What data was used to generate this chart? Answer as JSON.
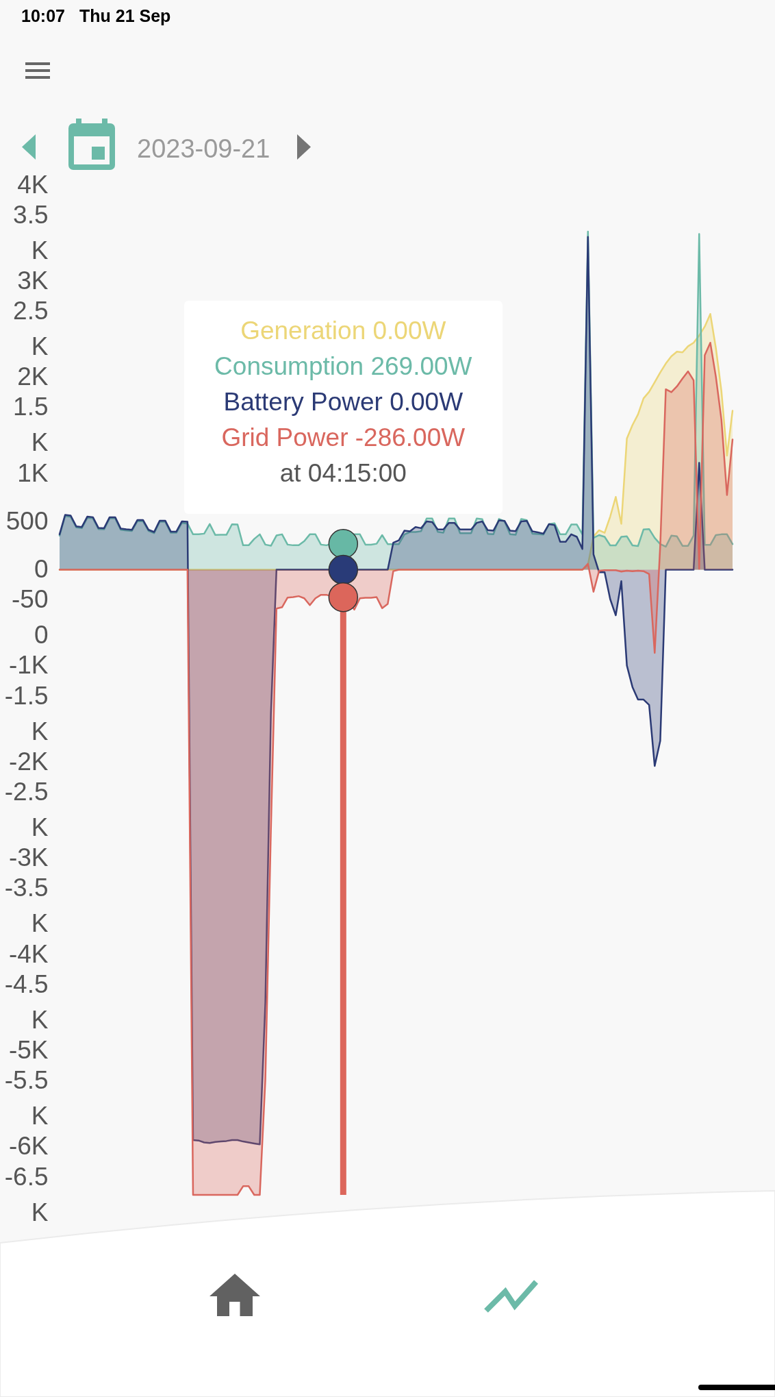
{
  "chart_data": {
    "type": "area",
    "title": "2023-09-21",
    "tick_labels": "y",
    "categories": [
      null,
      null,
      null,
      null,
      null,
      null,
      null,
      null,
      null,
      null,
      null,
      null,
      null,
      null,
      null,
      null,
      null,
      null,
      null,
      null,
      null,
      null,
      null,
      null,
      null,
      null,
      null,
      null,
      null,
      null,
      null,
      null,
      null,
      null,
      null,
      null,
      null,
      null,
      null,
      null,
      null,
      null,
      null,
      null,
      null,
      null,
      null,
      null,
      null,
      null,
      null,
      null,
      null,
      null,
      null,
      null,
      null,
      null,
      null,
      null,
      null,
      null,
      null,
      null,
      null,
      null,
      null,
      null,
      null,
      null,
      null,
      null,
      null,
      null,
      null,
      null,
      null,
      null,
      null,
      null,
      null,
      null,
      null,
      null,
      null,
      null,
      null,
      null,
      null,
      null,
      null,
      null,
      null,
      null,
      null,
      null,
      null,
      null,
      null,
      null,
      null,
      null,
      null,
      null,
      null,
      null,
      null,
      null,
      null,
      null,
      null,
      null,
      null,
      null,
      null,
      null,
      null,
      null,
      null,
      null,
      null,
      null
    ],
    "ylim": [
      -6500,
      4000
    ],
    "yticks": [
      {
        "value": 4000,
        "label": "4K"
      },
      {
        "value": 3500,
        "label": "3.5K"
      },
      {
        "value": 3000,
        "label": "3K"
      },
      {
        "value": 2500,
        "label": "2.5K"
      },
      {
        "value": 2000,
        "label": "2K"
      },
      {
        "value": 1500,
        "label": "1.5K"
      },
      {
        "value": 1000,
        "label": "1K"
      },
      500,
      0,
      -500,
      {
        "value": -1000,
        "label": "-1K"
      },
      {
        "value": -1500,
        "label": "-1.5K"
      },
      {
        "value": -2000,
        "label": "-2K"
      },
      {
        "value": -2500,
        "label": "-2.5K"
      },
      {
        "value": -3000,
        "label": "-3K"
      },
      {
        "value": -3500,
        "label": "-3.5K"
      },
      {
        "value": -4000,
        "label": "-4K"
      },
      {
        "value": -4500,
        "label": "-4.5K"
      },
      {
        "value": -5000,
        "label": "-5K"
      },
      {
        "value": -5500,
        "label": "-5.5K"
      },
      {
        "value": -6000,
        "label": "-6K"
      },
      {
        "value": -6500,
        "label": "-6.5K"
      }
    ],
    "series": [
      {
        "color": "#ecd677",
        "values": [
          0,
          0,
          0,
          0,
          0,
          0,
          0,
          0,
          0,
          0,
          0,
          0,
          0,
          0,
          0,
          0,
          0,
          0,
          0,
          0,
          0,
          0,
          0,
          0,
          0,
          0,
          0,
          0,
          0,
          0,
          0,
          0,
          0,
          0,
          0,
          0,
          0,
          0,
          0,
          0,
          0,
          0,
          0,
          0,
          0,
          0,
          0,
          0,
          0,
          0,
          0,
          0,
          0,
          0,
          0,
          0,
          0,
          0,
          0,
          0,
          0,
          0,
          0,
          0,
          0,
          0,
          0,
          0,
          0,
          0,
          0,
          0,
          0,
          0,
          0,
          0,
          0,
          0,
          0,
          0,
          0,
          0,
          0,
          0,
          0,
          0,
          0,
          0,
          0,
          0,
          0,
          0,
          0,
          0,
          0,
          50,
          347,
          410,
          384,
          552,
          757,
          477,
          1365,
          1503,
          1615,
          1782,
          1850,
          1950,
          2051,
          2144,
          2219,
          2267,
          2260,
          2323,
          2360,
          2435,
          2528,
          2659,
          2305,
          1857,
          1186,
          1652
        ]
      },
      {
        "color": "#6cbaa8",
        "values": [
          355,
          558,
          550,
          440,
          432,
          540,
          534,
          422,
          420,
          534,
          534,
          415,
          408,
          403,
          505,
          505,
          403,
          380,
          498,
          498,
          384,
          384,
          487,
          480,
          368,
          368,
          375,
          475,
          361,
          363,
          363,
          472,
          470,
          254,
          254,
          320,
          368,
          261,
          249,
          356,
          368,
          261,
          254,
          254,
          297,
          368,
          368,
          261,
          254,
          273,
          266,
          269,
          330,
          368,
          368,
          260,
          260,
          270,
          360,
          266,
          266,
          266,
          366,
          392,
          392,
          400,
          533,
          533,
          393,
          385,
          533,
          533,
          380,
          380,
          380,
          533,
          525,
          373,
          368,
          528,
          503,
          368,
          363,
          528,
          515,
          375,
          370,
          365,
          474,
          482,
          368,
          368,
          470,
          470,
          368,
          3516,
          330,
          360,
          342,
          253,
          253,
          342,
          347,
          253,
          246,
          419,
          423,
          330,
          266,
          240,
          355,
          347,
          248,
          248,
          355,
          3490,
          258,
          258,
          360,
          368,
          368,
          266
        ]
      },
      {
        "color": "#2b3a75",
        "values": [
          368,
          570,
          563,
          451,
          444,
          553,
          546,
          434,
          432,
          546,
          546,
          427,
          420,
          415,
          517,
          517,
          415,
          392,
          510,
          510,
          396,
          396,
          503,
          498,
          -5930,
          -5935,
          -5955,
          -5960,
          -5950,
          -5945,
          -5940,
          -5930,
          -5930,
          -5945,
          -5955,
          -5965,
          -5975,
          -4500,
          -1500,
          0,
          0,
          0,
          0,
          0,
          0,
          0,
          0,
          0,
          0,
          0,
          0,
          0,
          0,
          0,
          0,
          0,
          0,
          0,
          0,
          0,
          280,
          305,
          406,
          399,
          444,
          432,
          502,
          495,
          419,
          419,
          487,
          487,
          419,
          419,
          419,
          487,
          502,
          411,
          406,
          513,
          508,
          406,
          401,
          502,
          508,
          399,
          388,
          375,
          474,
          464,
          291,
          291,
          368,
          342,
          215,
          3461,
          160,
          -26,
          -26,
          -306,
          -474,
          -119,
          -996,
          -1219,
          -1350,
          -1350,
          -1406,
          -2040,
          -1779,
          0,
          0,
          0,
          0,
          0,
          0,
          1111,
          0,
          0,
          0,
          0,
          0,
          0
        ]
      },
      {
        "color": "#d9675e",
        "values": [
          0,
          0,
          0,
          0,
          0,
          0,
          0,
          0,
          0,
          0,
          0,
          0,
          0,
          0,
          0,
          0,
          0,
          0,
          0,
          0,
          0,
          0,
          0,
          0,
          -6500,
          -6500,
          -6500,
          -6500,
          -6500,
          -6500,
          -6500,
          -6500,
          -6500,
          -6410,
          -6410,
          -6500,
          -6500,
          -5300,
          -2700,
          -404,
          -390,
          -290,
          -285,
          -275,
          -297,
          -368,
          -297,
          -261,
          -261,
          -280,
          -290,
          -286,
          -330,
          -415,
          -297,
          -292,
          -292,
          -285,
          -400,
          -356,
          -15,
          0,
          0,
          0,
          0,
          0,
          0,
          0,
          0,
          0,
          0,
          0,
          0,
          0,
          0,
          0,
          0,
          0,
          0,
          0,
          0,
          0,
          0,
          0,
          0,
          0,
          0,
          0,
          0,
          0,
          0,
          0,
          0,
          0,
          0,
          62,
          -229,
          -13,
          -5,
          -5,
          -5,
          -20,
          -10,
          -15,
          -10,
          -15,
          -45,
          -865,
          250,
          1876,
          1846,
          1906,
          1988,
          2062,
          1969,
          10,
          2230,
          2360,
          2006,
          1559,
          776,
          1354
        ]
      },
      {
        "type": "scatter",
        "marker": "circle",
        "color": "#67b8a5",
        "values": [
          null,
          null,
          null,
          null,
          null,
          null,
          null,
          null,
          null,
          null,
          null,
          null,
          null,
          null,
          null,
          null,
          null,
          null,
          null,
          null,
          null,
          null,
          null,
          null,
          null,
          null,
          null,
          null,
          null,
          null,
          null,
          null,
          null,
          null,
          null,
          null,
          null,
          null,
          null,
          null,
          null,
          null,
          null,
          null,
          null,
          null,
          null,
          null,
          null,
          null,
          null,
          269,
          null,
          null,
          null,
          null,
          null,
          null,
          null,
          null,
          null,
          null,
          null,
          null,
          null,
          null,
          null,
          null,
          null,
          null,
          null,
          null,
          null,
          null,
          null,
          null,
          null,
          null,
          null,
          null,
          null,
          null,
          null,
          null,
          null,
          null,
          null,
          null,
          null,
          null,
          null,
          null,
          null,
          null,
          null,
          null,
          null,
          null,
          null,
          null,
          null,
          null,
          null,
          null,
          null,
          null,
          null,
          null,
          null,
          null,
          null,
          null,
          null,
          null,
          null,
          null,
          null,
          null,
          null,
          null,
          null,
          null
        ]
      },
      {
        "type": "scatter",
        "marker": "circle",
        "color": "#293b78",
        "values": [
          null,
          null,
          null,
          null,
          null,
          null,
          null,
          null,
          null,
          null,
          null,
          null,
          null,
          null,
          null,
          null,
          null,
          null,
          null,
          null,
          null,
          null,
          null,
          null,
          null,
          null,
          null,
          null,
          null,
          null,
          null,
          null,
          null,
          null,
          null,
          null,
          null,
          null,
          null,
          null,
          null,
          null,
          null,
          null,
          null,
          null,
          null,
          null,
          null,
          null,
          null,
          0,
          null,
          null,
          null,
          null,
          null,
          null,
          null,
          null,
          null,
          null,
          null,
          null,
          null,
          null,
          null,
          null,
          null,
          null,
          null,
          null,
          null,
          null,
          null,
          null,
          null,
          null,
          null,
          null,
          null,
          null,
          null,
          null,
          null,
          null,
          null,
          null,
          null,
          null,
          null,
          null,
          null,
          null,
          null,
          null,
          null,
          null,
          null,
          null,
          null,
          null,
          null,
          null,
          null,
          null,
          null,
          null,
          null,
          null,
          null,
          null,
          null,
          null,
          null,
          null,
          null,
          null,
          null,
          null,
          null,
          null
        ]
      },
      {
        "type": "scatter",
        "marker": "circle",
        "color": "#dc665b",
        "values": [
          null,
          null,
          null,
          null,
          null,
          null,
          null,
          null,
          null,
          null,
          null,
          null,
          null,
          null,
          null,
          null,
          null,
          null,
          null,
          null,
          null,
          null,
          null,
          null,
          null,
          null,
          null,
          null,
          null,
          null,
          null,
          null,
          null,
          null,
          null,
          null,
          null,
          null,
          null,
          null,
          null,
          null,
          null,
          null,
          null,
          null,
          null,
          null,
          null,
          null,
          null,
          -286,
          null,
          null,
          null,
          null,
          null,
          null,
          null,
          null,
          null,
          null,
          null,
          null,
          null,
          null,
          null,
          null,
          null,
          null,
          null,
          null,
          null,
          null,
          null,
          null,
          null,
          null,
          null,
          null,
          null,
          null,
          null,
          null,
          null,
          null,
          null,
          null,
          null,
          null,
          null,
          null,
          null,
          null,
          null,
          null,
          null,
          null,
          null,
          null,
          null,
          null,
          null,
          null,
          null,
          null,
          null,
          null,
          null,
          null,
          null,
          null,
          null,
          null,
          null,
          null,
          null,
          null,
          null,
          null,
          null,
          null
        ]
      }
    ],
    "annotations": [
      "Generation 0.00W",
      "Consumption 269.00W",
      "Battery Power 0.00W",
      "Grid Power -286.00W",
      "at 04:15:00",
      "10:07",
      "Thu 21 Sep"
    ]
  }
}
